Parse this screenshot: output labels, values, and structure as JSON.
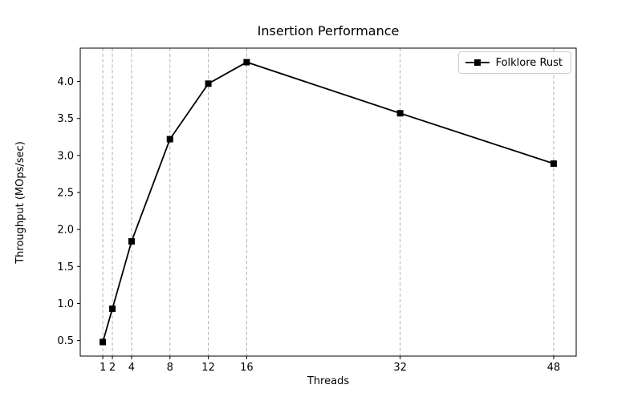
{
  "chart_data": {
    "type": "line",
    "title": "Insertion Performance",
    "xlabel": "Threads",
    "ylabel": "Throughput (MOps/sec)",
    "x": [
      1,
      2,
      4,
      8,
      12,
      16,
      32,
      48
    ],
    "series": [
      {
        "name": "Folklore Rust",
        "color": "#000000",
        "marker": "square",
        "values": [
          0.48,
          0.93,
          1.84,
          3.22,
          3.97,
          4.26,
          3.57,
          2.89
        ]
      }
    ],
    "x_ticks": [
      1,
      2,
      4,
      8,
      12,
      16,
      32,
      48
    ],
    "y_ticks": [
      0.5,
      1.0,
      1.5,
      2.0,
      2.5,
      3.0,
      3.5,
      4.0
    ],
    "xlim": [
      -1.35,
      50.35
    ],
    "ylim": [
      0.29,
      4.45
    ],
    "grid": "vertical-dashed",
    "grid_color": "#b0b0b0",
    "legend_position": "upper right",
    "background": "#ffffff"
  }
}
